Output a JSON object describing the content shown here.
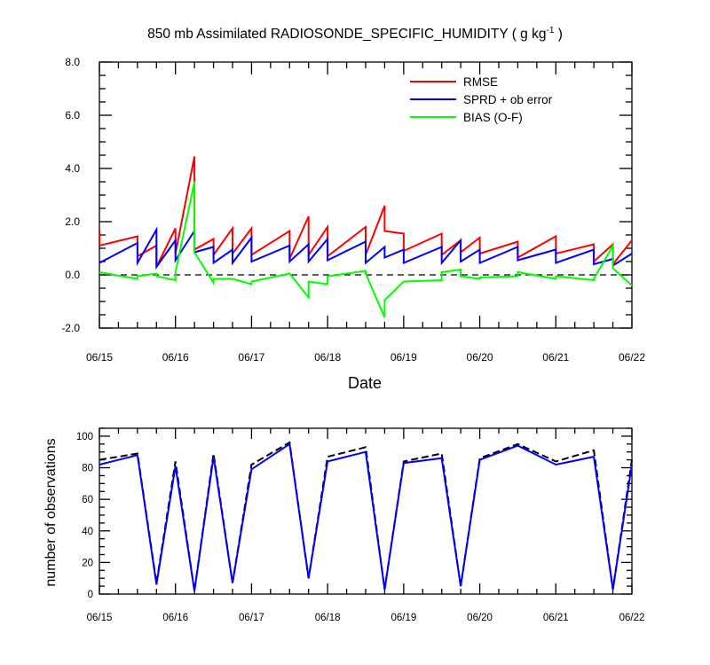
{
  "chart_data": [
    {
      "type": "line",
      "title": "850 mb Assimilated RADIOSONDE_SPECIFIC_HUMIDITY ( g kg",
      "title_superscript": "-1",
      "title_suffix": " )",
      "xlabel": "Date",
      "ylabel": "",
      "x_tick_labels": [
        "06/15",
        "06/16",
        "06/17",
        "06/18",
        "06/19",
        "06/20",
        "06/21",
        "06/22"
      ],
      "xlim": [
        0,
        7
      ],
      "y_tick_labels": [
        "-2.0",
        "0.0",
        "2.0",
        "4.0",
        "6.0",
        "8.0"
      ],
      "ylim": [
        -2,
        8
      ],
      "zero_line": true,
      "legend_position": "top-right",
      "series": [
        {
          "name": "RMSE",
          "color": "#ff0000",
          "points": [
            [
              0,
              1.7
            ],
            [
              0,
              1.1
            ],
            [
              0.5,
              1.45
            ],
            [
              0.5,
              0.7
            ],
            [
              0.75,
              1.1
            ],
            [
              0.75,
              0.3
            ],
            [
              1,
              1.75
            ],
            [
              1,
              0.8
            ],
            [
              1.25,
              4.45
            ],
            [
              1.25,
              0.95
            ],
            [
              1.5,
              1.35
            ],
            [
              1.5,
              0.75
            ],
            [
              1.75,
              1.75
            ],
            [
              1.75,
              0.8
            ],
            [
              2,
              1.75
            ],
            [
              2,
              0.75
            ],
            [
              2.5,
              1.65
            ],
            [
              2.5,
              0.6
            ],
            [
              2.75,
              2.2
            ],
            [
              2.75,
              0.75
            ],
            [
              3,
              1.8
            ],
            [
              3,
              0.7
            ],
            [
              3.5,
              1.8
            ],
            [
              3.5,
              0.75
            ],
            [
              3.75,
              2.6
            ],
            [
              3.75,
              1.65
            ],
            [
              4,
              1.55
            ],
            [
              4,
              0.9
            ],
            [
              4.5,
              1.55
            ],
            [
              4.5,
              0.75
            ],
            [
              4.75,
              1.3
            ],
            [
              4.75,
              0.85
            ],
            [
              5,
              1.4
            ],
            [
              5,
              0.8
            ],
            [
              5.5,
              1.25
            ],
            [
              5.5,
              0.65
            ],
            [
              6,
              1.45
            ],
            [
              6,
              0.8
            ],
            [
              6.5,
              1.15
            ],
            [
              6.5,
              0.5
            ],
            [
              6.75,
              1.15
            ],
            [
              6.75,
              0.4
            ],
            [
              7,
              1.3
            ]
          ]
        },
        {
          "name": "SPRD + ob error",
          "color": "#0000ff",
          "points": [
            [
              0,
              0.45
            ],
            [
              0.5,
              1.2
            ],
            [
              0.5,
              0.45
            ],
            [
              0.75,
              1.7
            ],
            [
              0.75,
              0.3
            ],
            [
              1,
              1.3
            ],
            [
              1,
              0.55
            ],
            [
              1.25,
              1.65
            ],
            [
              1.25,
              0.85
            ],
            [
              1.5,
              1.05
            ],
            [
              1.5,
              0.45
            ],
            [
              1.75,
              0.95
            ],
            [
              1.75,
              0.45
            ],
            [
              2,
              1.4
            ],
            [
              2,
              0.5
            ],
            [
              2.5,
              1.1
            ],
            [
              2.5,
              0.5
            ],
            [
              2.75,
              1.15
            ],
            [
              2.75,
              0.5
            ],
            [
              3,
              1.35
            ],
            [
              3,
              0.55
            ],
            [
              3.5,
              1.25
            ],
            [
              3.5,
              0.45
            ],
            [
              3.75,
              1.05
            ],
            [
              3.75,
              0.65
            ],
            [
              4,
              0.95
            ],
            [
              4,
              0.45
            ],
            [
              4.5,
              1.05
            ],
            [
              4.5,
              0.45
            ],
            [
              4.75,
              1.3
            ],
            [
              4.75,
              0.5
            ],
            [
              5,
              0.95
            ],
            [
              5,
              0.45
            ],
            [
              5.5,
              1.05
            ],
            [
              5.5,
              0.55
            ],
            [
              6,
              0.95
            ],
            [
              6,
              0.45
            ],
            [
              6.5,
              0.95
            ],
            [
              6.5,
              0.4
            ],
            [
              6.75,
              0.6
            ],
            [
              6.75,
              0.35
            ],
            [
              7,
              0.8
            ]
          ]
        },
        {
          "name": "BIAS (O-F)",
          "color": "#00ff00",
          "points": [
            [
              0,
              0.1
            ],
            [
              0.5,
              -0.15
            ],
            [
              0.5,
              -0.05
            ],
            [
              0.75,
              0.05
            ],
            [
              0.75,
              -0.05
            ],
            [
              1,
              -0.2
            ],
            [
              1,
              0.1
            ],
            [
              1.25,
              3.5
            ],
            [
              1.25,
              0.85
            ],
            [
              1.5,
              -0.3
            ],
            [
              1.5,
              -0.15
            ],
            [
              1.75,
              -0.15
            ],
            [
              1.75,
              -0.15
            ],
            [
              2,
              -0.35
            ],
            [
              2,
              -0.25
            ],
            [
              2.5,
              0.05
            ],
            [
              2.5,
              0.05
            ],
            [
              2.75,
              -0.85
            ],
            [
              2.75,
              -0.25
            ],
            [
              3,
              -0.35
            ],
            [
              3,
              -0.05
            ],
            [
              3.5,
              0.15
            ],
            [
              3.5,
              0.05
            ],
            [
              3.75,
              -1.6
            ],
            [
              3.75,
              -0.95
            ],
            [
              4,
              -0.25
            ],
            [
              4,
              -0.25
            ],
            [
              4.5,
              -0.2
            ],
            [
              4.5,
              0.1
            ],
            [
              4.75,
              0.2
            ],
            [
              4.75,
              -0.05
            ],
            [
              5,
              -0.15
            ],
            [
              5,
              -0.1
            ],
            [
              5.5,
              -0.05
            ],
            [
              5.5,
              0.1
            ],
            [
              6,
              -0.15
            ],
            [
              6,
              -0.05
            ],
            [
              6.5,
              -0.2
            ],
            [
              6.5,
              -0.15
            ],
            [
              6.75,
              1.1
            ],
            [
              6.75,
              0.25
            ],
            [
              7,
              -0.4
            ]
          ]
        }
      ]
    },
    {
      "type": "line",
      "title": "",
      "xlabel": "",
      "ylabel": "number of observations",
      "x_tick_labels": [
        "06/15",
        "06/16",
        "06/17",
        "06/18",
        "06/19",
        "06/20",
        "06/21",
        "06/22"
      ],
      "xlim": [
        0,
        7
      ],
      "y_tick_labels": [
        "0",
        "20",
        "40",
        "60",
        "80",
        "100"
      ],
      "ylim": [
        0,
        105
      ],
      "series": [
        {
          "color": "#000000",
          "dash": true,
          "points": [
            [
              0,
              85
            ],
            [
              0.5,
              89
            ],
            [
              0.75,
              7
            ],
            [
              1,
              84
            ],
            [
              1.25,
              2
            ],
            [
              1.5,
              89
            ],
            [
              1.75,
              7
            ],
            [
              2,
              82
            ],
            [
              2.5,
              96
            ],
            [
              2.75,
              10
            ],
            [
              3,
              87
            ],
            [
              3.5,
              93
            ],
            [
              3.75,
              3
            ],
            [
              4,
              84
            ],
            [
              4.5,
              89
            ],
            [
              4.75,
              5
            ],
            [
              5,
              86
            ],
            [
              5.5,
              95
            ],
            [
              6,
              84
            ],
            [
              6.5,
              91
            ],
            [
              6.75,
              3
            ],
            [
              7,
              85
            ]
          ]
        },
        {
          "color": "#0000ff",
          "dash": false,
          "points": [
            [
              0,
              82
            ],
            [
              0.5,
              88
            ],
            [
              0.75,
              6
            ],
            [
              1,
              81
            ],
            [
              1.25,
              2
            ],
            [
              1.5,
              87
            ],
            [
              1.75,
              7
            ],
            [
              2,
              79
            ],
            [
              2.5,
              95
            ],
            [
              2.75,
              10
            ],
            [
              3,
              84
            ],
            [
              3.5,
              90
            ],
            [
              3.75,
              3
            ],
            [
              4,
              83
            ],
            [
              4.5,
              86
            ],
            [
              4.75,
              5
            ],
            [
              5,
              85
            ],
            [
              5.5,
              94
            ],
            [
              6,
              82
            ],
            [
              6.5,
              87
            ],
            [
              6.75,
              3
            ],
            [
              7,
              82
            ]
          ]
        }
      ]
    }
  ]
}
